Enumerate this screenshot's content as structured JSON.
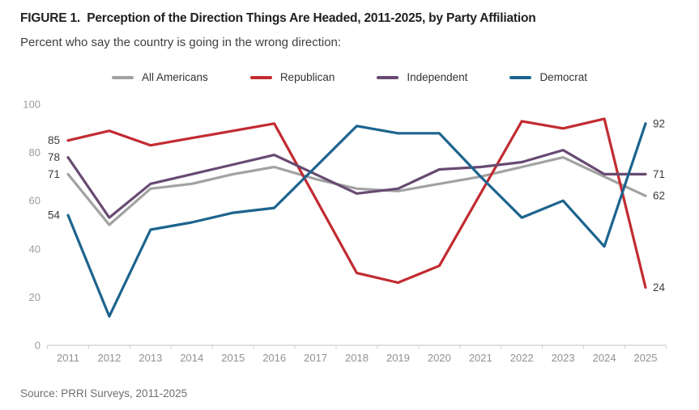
{
  "figure": {
    "title": "FIGURE 1.  Perception of the Direction Things Are Headed, 2011-2025, by Party Affiliation",
    "subtitle": "Percent who say the country is going in the wrong direction:",
    "source": "Source: PRRI Surveys, 2011-2025"
  },
  "chart_data": {
    "type": "line",
    "x": [
      2011,
      2012,
      2013,
      2014,
      2015,
      2016,
      2017,
      2018,
      2019,
      2020,
      2021,
      2022,
      2023,
      2024,
      2025
    ],
    "series": [
      {
        "name": "All Americans",
        "color": "#a2a2a2",
        "values": [
          71,
          50,
          65,
          67,
          71,
          74,
          69,
          65,
          64,
          67,
          70,
          74,
          78,
          70,
          62
        ]
      },
      {
        "name": "Republican",
        "color": "#c22b31",
        "values": [
          85,
          89,
          83,
          86,
          89,
          92,
          61,
          30,
          26,
          33,
          63,
          93,
          90,
          94,
          24
        ]
      },
      {
        "name": "Independent",
        "color": "#684a72",
        "values": [
          78,
          53,
          67,
          71,
          75,
          79,
          71,
          63,
          65,
          73,
          74,
          76,
          81,
          71,
          71
        ]
      },
      {
        "name": "Democrat",
        "color": "#1c648e",
        "values": [
          54,
          12,
          48,
          51,
          55,
          57,
          74,
          91,
          88,
          88,
          70,
          53,
          60,
          41,
          92
        ]
      }
    ],
    "ylim": [
      0,
      100
    ],
    "yticks": [
      0,
      20,
      40,
      60,
      80,
      100
    ],
    "grid": false,
    "legend_position": "top",
    "point_labels": {
      "first_year": [
        71,
        85,
        78,
        54
      ],
      "last_year": [
        62,
        24,
        71,
        92
      ]
    }
  }
}
